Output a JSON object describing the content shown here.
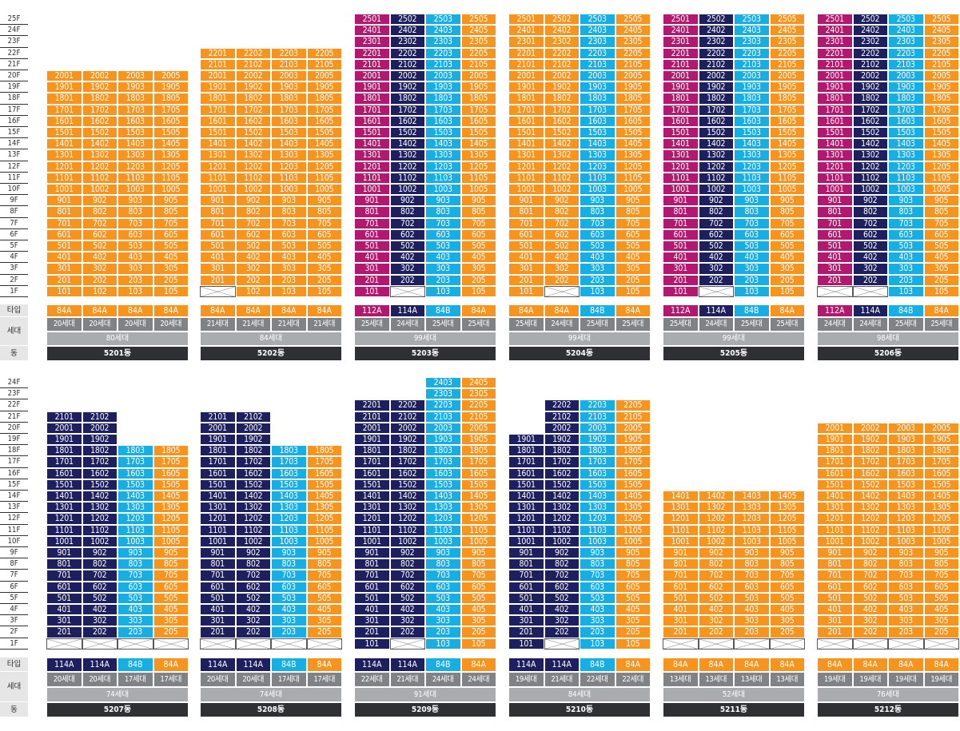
{
  "labels": {
    "type": "타입",
    "households": "세대",
    "dong": "동"
  },
  "colors": {
    "A": "#f7941d",
    "N": "#1e1f5e",
    "C": "#16aee3",
    "M": "#b3186f"
  },
  "floors": [
    "1F",
    "2F",
    "3F",
    "4F",
    "5F",
    "6F",
    "7F",
    "8F",
    "9F",
    "10F",
    "11F",
    "12F",
    "13F",
    "14F",
    "15F",
    "16F",
    "17F",
    "18F",
    "19F",
    "20F",
    "21F",
    "22F",
    "23F",
    "24F",
    "25F"
  ],
  "rows": [
    {
      "name": "top",
      "floor_count": 25
    },
    {
      "name": "bottom",
      "floor_count": 24
    }
  ],
  "buildings": [
    {
      "row": 0,
      "dong": "5201동",
      "total": "80세대",
      "columns": [
        {
          "line": "01",
          "type": "84A",
          "households": "20세대",
          "color": "A",
          "top": 20
        },
        {
          "line": "02",
          "type": "84A",
          "households": "20세대",
          "color": "A",
          "top": 20
        },
        {
          "line": "03",
          "type": "84A",
          "households": "20세대",
          "color": "A",
          "top": 20
        },
        {
          "line": "05",
          "type": "84A",
          "households": "20세대",
          "color": "A",
          "top": 20
        }
      ]
    },
    {
      "row": 0,
      "dong": "5202동",
      "total": "84세대",
      "columns": [
        {
          "line": "01",
          "type": "84A",
          "households": "21세대",
          "color": "A",
          "top": 22,
          "pilotis": [
            1
          ]
        },
        {
          "line": "02",
          "type": "84A",
          "households": "21세대",
          "color": "A",
          "top": 22
        },
        {
          "line": "03",
          "type": "84A",
          "households": "21세대",
          "color": "A",
          "top": 22
        },
        {
          "line": "05",
          "type": "84A",
          "households": "21세대",
          "color": "A",
          "top": 22
        }
      ]
    },
    {
      "row": 0,
      "dong": "5203동",
      "total": "99세대",
      "columns": [
        {
          "line": "01",
          "type": "112A",
          "households": "25세대",
          "color": "M",
          "top": 25
        },
        {
          "line": "02",
          "type": "114A",
          "households": "24세대",
          "color": "N",
          "top": 25,
          "pilotis": [
            1
          ]
        },
        {
          "line": "03",
          "type": "84B",
          "households": "25세대",
          "color": "C",
          "top": 25
        },
        {
          "line": "05",
          "type": "84A",
          "households": "25세대",
          "color": "A",
          "top": 25
        }
      ]
    },
    {
      "row": 0,
      "dong": "5204동",
      "total": "99세대",
      "columns": [
        {
          "line": "01",
          "type": "84A",
          "households": "25세대",
          "color": "A",
          "top": 25
        },
        {
          "line": "02",
          "type": "84A",
          "households": "24세대",
          "color": "A",
          "top": 25,
          "pilotis": [
            1
          ]
        },
        {
          "line": "03",
          "type": "84B",
          "households": "25세대",
          "color": "C",
          "top": 25
        },
        {
          "line": "05",
          "type": "84A",
          "households": "25세대",
          "color": "A",
          "top": 25
        }
      ]
    },
    {
      "row": 0,
      "dong": "5205동",
      "total": "99세대",
      "columns": [
        {
          "line": "01",
          "type": "112A",
          "households": "25세대",
          "color": "M",
          "top": 25
        },
        {
          "line": "02",
          "type": "114A",
          "households": "24세대",
          "color": "N",
          "top": 25,
          "pilotis": [
            1
          ]
        },
        {
          "line": "03",
          "type": "84B",
          "households": "25세대",
          "color": "C",
          "top": 25
        },
        {
          "line": "05",
          "type": "84A",
          "households": "25세대",
          "color": "A",
          "top": 25
        }
      ]
    },
    {
      "row": 0,
      "dong": "5206동",
      "total": "98세대",
      "columns": [
        {
          "line": "01",
          "type": "112A",
          "households": "24세대",
          "color": "M",
          "top": 25,
          "pilotis": [
            1
          ]
        },
        {
          "line": "02",
          "type": "114A",
          "households": "24세대",
          "color": "N",
          "top": 25,
          "pilotis": [
            1
          ]
        },
        {
          "line": "03",
          "type": "84B",
          "households": "25세대",
          "color": "C",
          "top": 25
        },
        {
          "line": "05",
          "type": "84A",
          "households": "25세대",
          "color": "A",
          "top": 25
        }
      ]
    },
    {
      "row": 1,
      "dong": "5207동",
      "total": "74세대",
      "columns": [
        {
          "line": "01",
          "type": "114A",
          "households": "20세대",
          "color": "N",
          "top": 21,
          "pilotis": [
            1
          ]
        },
        {
          "line": "02",
          "type": "114A",
          "households": "20세대",
          "color": "N",
          "top": 21,
          "pilotis": [
            1
          ]
        },
        {
          "line": "03",
          "type": "84B",
          "households": "17세대",
          "color": "C",
          "top": 18,
          "pilotis": [
            1
          ]
        },
        {
          "line": "05",
          "type": "84A",
          "households": "17세대",
          "color": "A",
          "top": 18,
          "pilotis": [
            1
          ]
        }
      ]
    },
    {
      "row": 1,
      "dong": "5208동",
      "total": "74세대",
      "columns": [
        {
          "line": "01",
          "type": "114A",
          "households": "20세대",
          "color": "N",
          "top": 21,
          "pilotis": [
            1
          ]
        },
        {
          "line": "02",
          "type": "114A",
          "households": "20세대",
          "color": "N",
          "top": 21,
          "pilotis": [
            1
          ]
        },
        {
          "line": "03",
          "type": "84B",
          "households": "17세대",
          "color": "C",
          "top": 18,
          "pilotis": [
            1
          ]
        },
        {
          "line": "05",
          "type": "84A",
          "households": "17세대",
          "color": "A",
          "top": 18,
          "pilotis": [
            1
          ]
        }
      ]
    },
    {
      "row": 1,
      "dong": "5209동",
      "total": "91세대",
      "columns": [
        {
          "line": "01",
          "type": "114A",
          "households": "22세대",
          "color": "N",
          "top": 22
        },
        {
          "line": "02",
          "type": "114A",
          "households": "21세대",
          "color": "N",
          "top": 22,
          "pilotis": [
            1
          ]
        },
        {
          "line": "03",
          "type": "84B",
          "households": "24세대",
          "color": "C",
          "top": 24
        },
        {
          "line": "05",
          "type": "84A",
          "households": "24세대",
          "color": "A",
          "top": 24
        }
      ]
    },
    {
      "row": 1,
      "dong": "5210동",
      "total": "84세대",
      "columns": [
        {
          "line": "01",
          "type": "114A",
          "households": "19세대",
          "color": "N",
          "top": 19
        },
        {
          "line": "02",
          "type": "114A",
          "households": "21세대",
          "color": "N",
          "top": 22,
          "pilotis": [
            1
          ]
        },
        {
          "line": "03",
          "type": "84B",
          "households": "22세대",
          "color": "C",
          "top": 22
        },
        {
          "line": "05",
          "type": "84A",
          "households": "22세대",
          "color": "A",
          "top": 22
        }
      ]
    },
    {
      "row": 1,
      "dong": "5211동",
      "total": "52세대",
      "columns": [
        {
          "line": "01",
          "type": "84A",
          "households": "13세대",
          "color": "A",
          "top": 14,
          "pilotis": [
            1
          ]
        },
        {
          "line": "02",
          "type": "84A",
          "households": "13세대",
          "color": "A",
          "top": 14,
          "pilotis": [
            1
          ]
        },
        {
          "line": "03",
          "type": "84A",
          "households": "13세대",
          "color": "A",
          "top": 14,
          "pilotis": [
            1
          ]
        },
        {
          "line": "05",
          "type": "84A",
          "households": "13세대",
          "color": "A",
          "top": 14,
          "pilotis": [
            1
          ]
        }
      ]
    },
    {
      "row": 1,
      "dong": "5212동",
      "total": "76세대",
      "columns": [
        {
          "line": "01",
          "type": "84A",
          "households": "19세대",
          "color": "A",
          "top": 20,
          "pilotis": [
            1
          ]
        },
        {
          "line": "02",
          "type": "84A",
          "households": "19세대",
          "color": "A",
          "top": 20,
          "pilotis": [
            1
          ]
        },
        {
          "line": "03",
          "type": "84A",
          "households": "19세대",
          "color": "A",
          "top": 20,
          "pilotis": [
            1
          ]
        },
        {
          "line": "05",
          "type": "84A",
          "households": "19세대",
          "color": "A",
          "top": 20,
          "pilotis": [
            1
          ]
        }
      ]
    }
  ]
}
